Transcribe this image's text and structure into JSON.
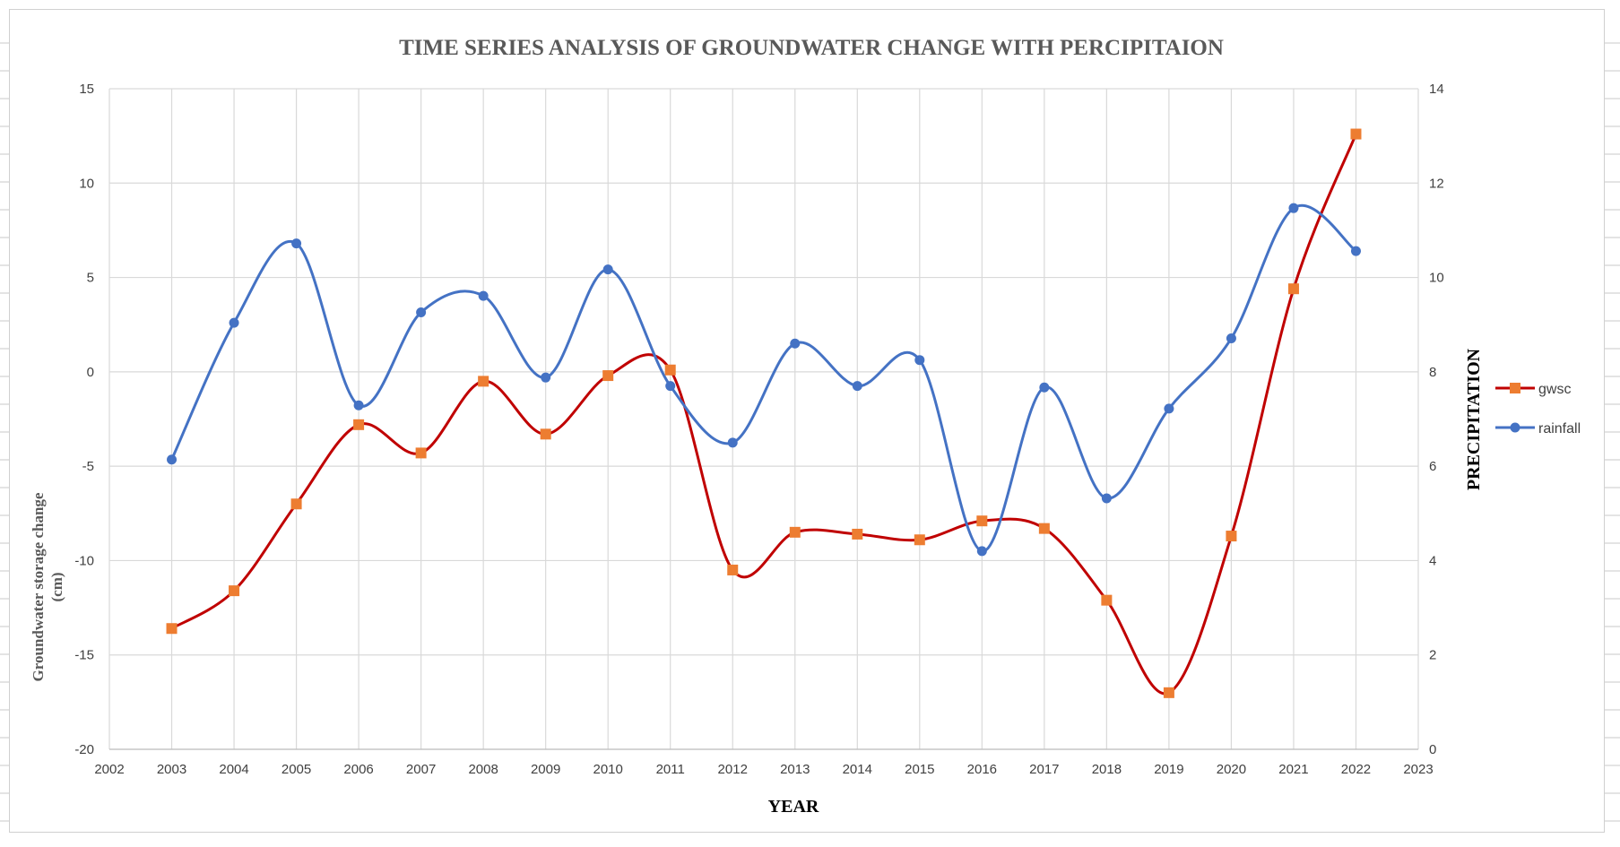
{
  "chart_data": {
    "type": "line",
    "title": "TIME SERIES ANALYSIS OF GROUNDWATER CHANGE WITH PERCIPITAION",
    "xlabel": "YEAR",
    "ylabel_left": "Groundwater storage change (cm)",
    "ylabel_right": "PRECIPITATION",
    "x_ticks": [
      "2002",
      "2003",
      "2004",
      "2005",
      "2006",
      "2007",
      "2008",
      "2009",
      "2010",
      "2011",
      "2012",
      "2013",
      "2014",
      "2015",
      "2016",
      "2017",
      "2018",
      "2019",
      "2020",
      "2021",
      "2022",
      "2023"
    ],
    "xlim": [
      2002,
      2023
    ],
    "ylim_left": [
      -20,
      15
    ],
    "ylim_right": [
      0,
      14
    ],
    "y_left_ticks": [
      "15",
      "10",
      "5",
      "0",
      "-5",
      "-10",
      "-15",
      "-20"
    ],
    "y_right_ticks": [
      "14",
      "12",
      "10",
      "8",
      "6",
      "4",
      "2",
      "0"
    ],
    "grid": true,
    "smooth": true,
    "legend_position": "right",
    "series": [
      {
        "name": "gwsc",
        "axis": "left",
        "color": "#c00000",
        "marker": "square",
        "marker_color": "#ed7d31",
        "x": [
          2003,
          2004,
          2005,
          2006,
          2007,
          2008,
          2009,
          2010,
          2011,
          2012,
          2013,
          2014,
          2015,
          2016,
          2017,
          2018,
          2019,
          2020,
          2021,
          2022
        ],
        "values": [
          -13.6,
          -11.6,
          -7.0,
          -2.8,
          -4.3,
          -0.5,
          -3.3,
          -0.2,
          0.1,
          -10.5,
          -8.5,
          -8.6,
          -8.9,
          -7.9,
          -8.3,
          -12.1,
          -17.0,
          -8.7,
          4.4,
          12.6
        ]
      },
      {
        "name": "rainfall",
        "axis": "right",
        "color": "#4472c4",
        "marker": "circle",
        "marker_color": "#4472c4",
        "x": [
          2003,
          2004,
          2005,
          2006,
          2007,
          2008,
          2009,
          2010,
          2011,
          2012,
          2013,
          2014,
          2015,
          2016,
          2017,
          2018,
          2019,
          2020,
          2021,
          2022
        ],
        "values": [
          6.14,
          9.04,
          10.72,
          7.29,
          9.26,
          9.61,
          7.88,
          10.17,
          7.7,
          6.5,
          8.6,
          7.7,
          8.25,
          4.2,
          7.67,
          5.32,
          7.22,
          8.71,
          11.47,
          10.56
        ]
      }
    ]
  }
}
